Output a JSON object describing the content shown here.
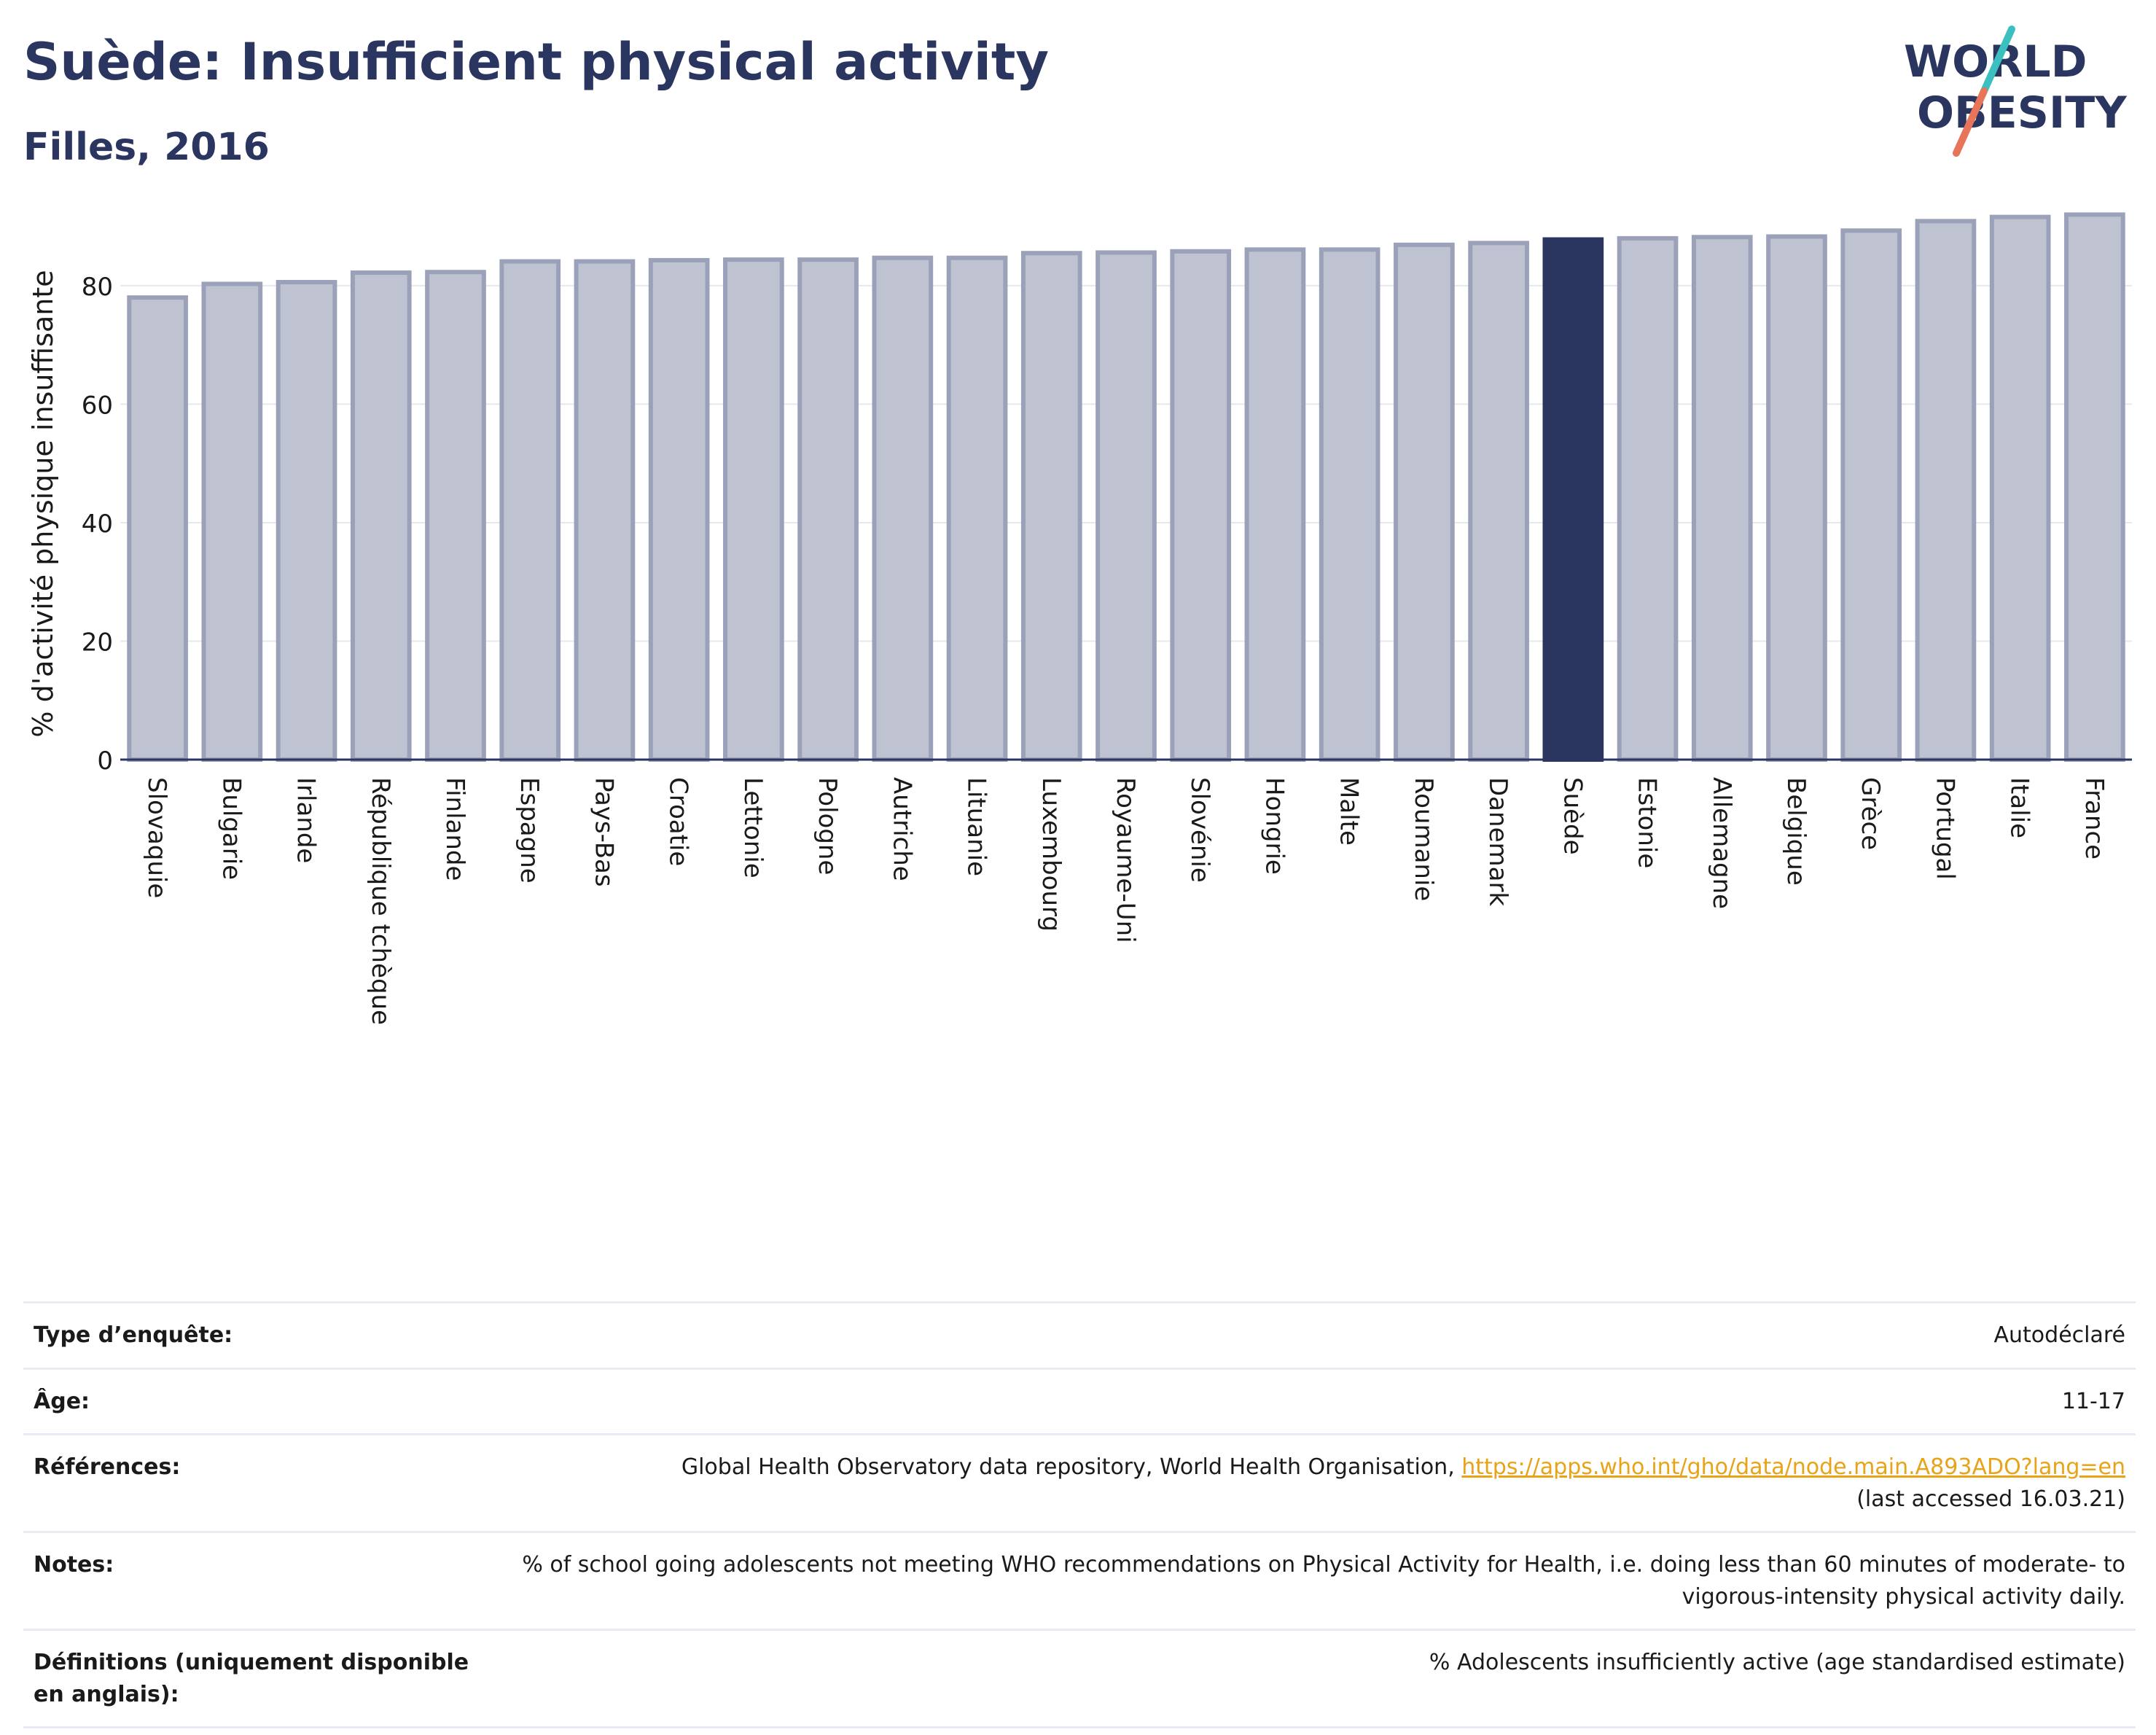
{
  "header": {
    "title": "Suède: Insufficient physical activity",
    "subtitle": "Filles, 2016"
  },
  "logo": {
    "line1": "WORLD",
    "line2": "OBESITY",
    "slash_colors": [
      "#3bbfbf",
      "#e8745a"
    ]
  },
  "colors": {
    "highlight": "#2a3560",
    "bar": "#bfc3d1",
    "bar_edge": "#9aa1b9",
    "axis": "#2a3560",
    "link": "#e8a317"
  },
  "chart_data": {
    "type": "bar",
    "ylabel": "% d'activité physique insuffisante",
    "ylim": [
      0,
      95
    ],
    "yticks": [
      0,
      20,
      40,
      60,
      80
    ],
    "grid": true,
    "highlight": "Suède",
    "categories": [
      "Slovaquie",
      "Bulgarie",
      "Irlande",
      "République tchèque",
      "Finlande",
      "Espagne",
      "Pays-Bas",
      "Croatie",
      "Lettonie",
      "Pologne",
      "Autriche",
      "Lituanie",
      "Luxembourg",
      "Royaume-Uni",
      "Slovénie",
      "Hongrie",
      "Malte",
      "Roumanie",
      "Danemark",
      "Suède",
      "Estonie",
      "Allemagne",
      "Belgique",
      "Grèce",
      "Portugal",
      "Italie",
      "France"
    ],
    "values": [
      78.0,
      80.3,
      80.6,
      82.2,
      82.3,
      84.1,
      84.1,
      84.3,
      84.4,
      84.4,
      84.7,
      84.7,
      85.5,
      85.6,
      85.8,
      86.1,
      86.1,
      86.9,
      87.2,
      87.8,
      88.0,
      88.2,
      88.3,
      89.3,
      90.9,
      91.6,
      92.0
    ]
  },
  "meta": [
    {
      "key": "Type d’enquête:",
      "value": "Autodéclaré"
    },
    {
      "key": "Âge:",
      "value": "11-17"
    },
    {
      "key": "Références:",
      "value": "Global Health Observatory data repository, World Health Organisation, ",
      "link": "https://apps.who.int/gho/data/node.main.A893ADO?lang=en",
      "after": "(last accessed 16.03.21)"
    },
    {
      "key": "Notes:",
      "value": "% of school going adolescents not meeting WHO recommendations on Physical Activity for Health, i.e. doing less than 60 minutes of moderate- to vigorous-intensity physical activity daily."
    },
    {
      "key": "Définitions (uniquement disponible en anglais):",
      "value": "% Adolescents insufficiently active (age standardised estimate)"
    }
  ]
}
